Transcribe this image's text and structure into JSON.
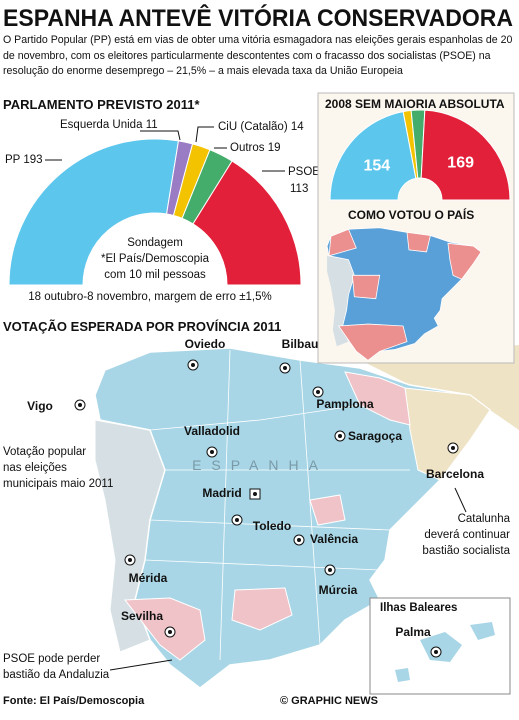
{
  "header": {
    "title": "ESPANHA ANTEVÊ VITÓRIA CONSERVADORA",
    "intro": "O Partido Popular (PP) está em vias de obter uma vitória esmagadora nas eleições gerais espanholas de 20 de novembro, com os eleitores particularmente descontentes com o fracasso dos socialistas (PSOE) na resolução do enorme desemprego – 21,5%  – a mais elevada taxa da União Europeia"
  },
  "chart_data": [
    {
      "type": "half-donut",
      "title": "PARLAMENTO PREVISTO 2011*",
      "categories": [
        "PP",
        "Esquerda Unida",
        "CiU (Catalão)",
        "Outros",
        "PSOE"
      ],
      "values": [
        193,
        11,
        14,
        19,
        113
      ],
      "colors": [
        "#5cc6ec",
        "#9a7cc4",
        "#f4c300",
        "#45ad6c",
        "#e2203a"
      ],
      "annotation": [
        "Sondagem",
        "*El País/Demoscopia",
        "com 10 mil pessoas"
      ],
      "note": "18 outubro-8 novembro, margem de erro ±1,5%"
    },
    {
      "type": "half-donut",
      "title": "2008 SEM MAIORIA ABSOLUTA",
      "categories": [
        null,
        null,
        null,
        null
      ],
      "values": [
        154,
        10,
        17,
        169
      ],
      "colors": [
        "#5cc6ec",
        "#f4c300",
        "#45ad6c",
        "#e2203a"
      ]
    }
  ],
  "small_map": {
    "title": "COMO VOTOU O PAÍS"
  },
  "map": {
    "title": "VOTAÇÃO ESPERADA POR PROVÍNCIA 2011",
    "country": "ESPANHA",
    "cities": [
      "Oviedo",
      "Bilbau",
      "Vigo",
      "Pamplona",
      "Valladolid",
      "Saragoça",
      "Barcelona",
      "Madrid",
      "Toledo",
      "Valência",
      "Mérida",
      "Múrcia",
      "Sevilha",
      "Palma"
    ],
    "inset_title": "Ilhas Baleares",
    "notes": [
      [
        "Votação popular",
        "nas eleições",
        "municipais maio 2011"
      ],
      [
        "Catalunha",
        "deverá continuar",
        "bastião socialista"
      ],
      [
        "PSOE pode perder",
        "bastião da Andaluzia"
      ]
    ]
  },
  "footer": {
    "source": "Fonte: El País/Demoscopia",
    "credit": "© GRAPHIC NEWS"
  }
}
